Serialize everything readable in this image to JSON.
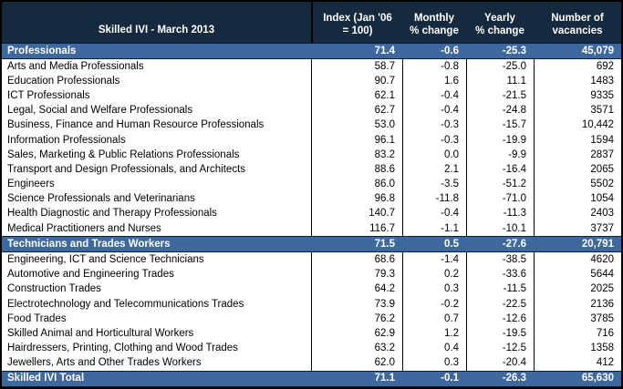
{
  "title": "Skilled IVI - March 2013",
  "colors": {
    "header_bg": "#15293f",
    "band_bg": "#3e689e",
    "band_border": "#0c1f33",
    "grid_border": "#000000",
    "band_text": "#ffffff",
    "data_text": "#000000"
  },
  "columns": [
    {
      "line1": "Index (Jan '06",
      "line2": "= 100)"
    },
    {
      "line1": "Monthly",
      "line2": "% change"
    },
    {
      "line1": "Yearly",
      "line2": "% change"
    },
    {
      "line1": "Number of",
      "line2": "vacancies"
    }
  ],
  "rows": [
    {
      "type": "band",
      "label": "Professionals",
      "index": "71.4",
      "monthly": "-0.6",
      "yearly": "-25.3",
      "vacancies": "45,079"
    },
    {
      "type": "data",
      "label": "Arts and Media Professionals",
      "index": "58.7",
      "monthly": "-0.8",
      "yearly": "-25.0",
      "vacancies": "692"
    },
    {
      "type": "data",
      "label": "Education Professionals",
      "index": "90.7",
      "monthly": "1.6",
      "yearly": "11.1",
      "vacancies": "1483"
    },
    {
      "type": "data",
      "label": "ICT Professionals",
      "index": "62.1",
      "monthly": "-0.4",
      "yearly": "-21.5",
      "vacancies": "9335"
    },
    {
      "type": "data",
      "label": "Legal, Social and Welfare Professionals",
      "index": "62.7",
      "monthly": "-0.4",
      "yearly": "-24.8",
      "vacancies": "3571"
    },
    {
      "type": "data",
      "label": "Business, Finance and Human Resource Professionals",
      "index": "53.0",
      "monthly": "-0.3",
      "yearly": "-15.7",
      "vacancies": "10,442"
    },
    {
      "type": "data",
      "label": "Information Professionals",
      "index": "96.1",
      "monthly": "-0.3",
      "yearly": "-19.9",
      "vacancies": "1594"
    },
    {
      "type": "data",
      "label": "Sales, Marketing & Public Relations Professionals",
      "index": "83.2",
      "monthly": "0.0",
      "yearly": "-9.9",
      "vacancies": "2837"
    },
    {
      "type": "data",
      "label": "Transport and Design Professionals, and Architects",
      "index": "88.6",
      "monthly": "2.1",
      "yearly": "-16.4",
      "vacancies": "2065"
    },
    {
      "type": "data",
      "label": "Engineers",
      "index": "86.0",
      "monthly": "-3.5",
      "yearly": "-51.2",
      "vacancies": "5502"
    },
    {
      "type": "data",
      "label": "Science Professionals and Veterinarians",
      "index": "96.8",
      "monthly": "-11.8",
      "yearly": "-71.0",
      "vacancies": "1054"
    },
    {
      "type": "data",
      "label": "Health Diagnostic and Therapy Professionals",
      "index": "140.7",
      "monthly": "-0.4",
      "yearly": "-11.3",
      "vacancies": "2403"
    },
    {
      "type": "data",
      "label": "Medical Practitioners and Nurses",
      "index": "116.7",
      "monthly": "-1.1",
      "yearly": "-10.1",
      "vacancies": "3737"
    },
    {
      "type": "band",
      "label": "Technicians and Trades Workers",
      "index": "71.5",
      "monthly": "0.5",
      "yearly": "-27.6",
      "vacancies": "20,791"
    },
    {
      "type": "data",
      "label": "Engineering, ICT and Science Technicians",
      "index": "68.6",
      "monthly": "-1.4",
      "yearly": "-38.5",
      "vacancies": "4620"
    },
    {
      "type": "data",
      "label": "Automotive and Engineering Trades",
      "index": "79.3",
      "monthly": "0.2",
      "yearly": "-33.6",
      "vacancies": "5644"
    },
    {
      "type": "data",
      "label": "Construction Trades",
      "index": "64.2",
      "monthly": "0.3",
      "yearly": "-11.5",
      "vacancies": "2025"
    },
    {
      "type": "data",
      "label": "Electrotechnology and Telecommunications Trades",
      "index": "73.9",
      "monthly": "-0.2",
      "yearly": "-22.5",
      "vacancies": "2136"
    },
    {
      "type": "data",
      "label": "Food Trades",
      "index": "76.2",
      "monthly": "0.7",
      "yearly": "-12.6",
      "vacancies": "3785"
    },
    {
      "type": "data",
      "label": "Skilled Animal and Horticultural Workers",
      "index": "62.9",
      "monthly": "1.2",
      "yearly": "-19.5",
      "vacancies": "716"
    },
    {
      "type": "data",
      "label": "Hairdressers, Printing, Clothing and Wood Trades",
      "index": "63.2",
      "monthly": "0.4",
      "yearly": "-12.5",
      "vacancies": "1358"
    },
    {
      "type": "data",
      "label": "Jewellers, Arts and Other Trades Workers",
      "index": "62.0",
      "monthly": "0.3",
      "yearly": "-20.4",
      "vacancies": "412"
    },
    {
      "type": "band",
      "label": "Skilled IVI Total",
      "index": "71.1",
      "monthly": "-0.1",
      "yearly": "-26.3",
      "vacancies": "65,630"
    }
  ]
}
